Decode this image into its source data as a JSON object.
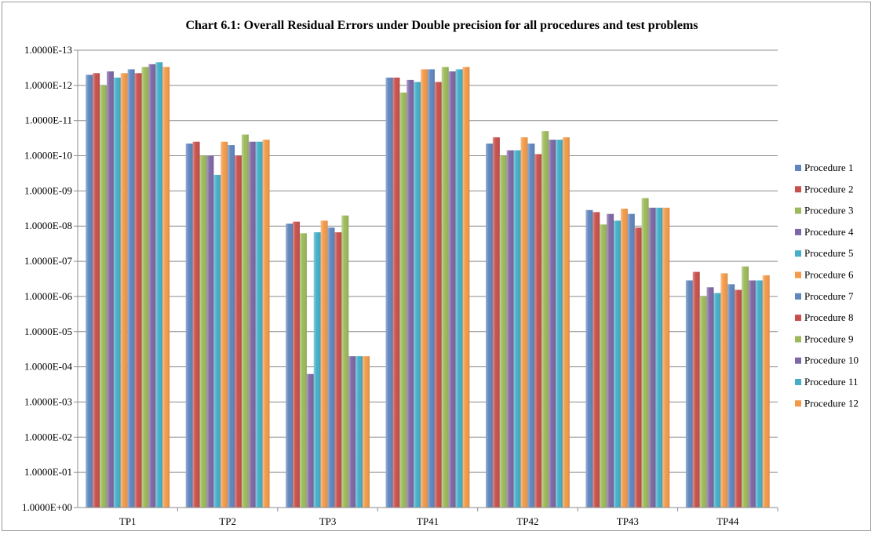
{
  "chart_data": {
    "type": "bar",
    "title": "Chart 6.1: Overall Residual Errors under Double precision for all procedures and test problems",
    "xlabel": "",
    "ylabel": "",
    "y_scale": "log",
    "y_axis_direction": "reversed (1.0000E+00 at bottom, 1.0000E-13 at top)",
    "ylim": [
      1.0,
      1e-13
    ],
    "y_tick_labels": [
      "1.0000E-13",
      "1.0000E-12",
      "1.0000E-11",
      "1.0000E-10",
      "1.0000E-09",
      "1.0000E-08",
      "1.0000E-07",
      "1.0000E-06",
      "1.0000E-05",
      "1.0000E-04",
      "1.0000E-03",
      "1.0000E-02",
      "1.0000E-01",
      "1.0000E+00"
    ],
    "categories": [
      "TP1",
      "TP2",
      "TP3",
      "TP41",
      "TP42",
      "TP43",
      "TP44"
    ],
    "grid": true,
    "legend_position": "right",
    "series": [
      {
        "name": "Procedure 1",
        "color": "#5f86bd",
        "values": [
          5e-13,
          4.5e-11,
          8.5e-09,
          6e-13,
          4.5e-11,
          3.5e-09,
          3.5e-07
        ]
      },
      {
        "name": "Procedure 2",
        "color": "#c8504c",
        "values": [
          4.5e-13,
          4e-11,
          7.5e-09,
          6e-13,
          3e-11,
          4e-09,
          2e-07
        ]
      },
      {
        "name": "Procedure 3",
        "color": "#9cba5a",
        "values": [
          1e-12,
          1e-10,
          1.6e-08,
          1.6e-12,
          1e-10,
          9e-09,
          1e-06
        ]
      },
      {
        "name": "Procedure 4",
        "color": "#7e67a4",
        "values": [
          4e-13,
          1e-10,
          0.00016,
          7e-13,
          7e-11,
          4.5e-09,
          5.5e-07
        ]
      },
      {
        "name": "Procedure 5",
        "color": "#45aec8",
        "values": [
          6e-13,
          3.5e-10,
          1.5e-08,
          8e-13,
          7e-11,
          7e-09,
          8e-07
        ]
      },
      {
        "name": "Procedure 6",
        "color": "#f39a48",
        "values": [
          4.5e-13,
          4e-11,
          7e-09,
          3.5e-13,
          3e-11,
          3.2e-09,
          2.2e-07
        ]
      },
      {
        "name": "Procedure 7",
        "color": "#5f86bd",
        "values": [
          3.5e-13,
          5e-11,
          1.1e-08,
          3.5e-13,
          4.5e-11,
          4.5e-09,
          4.5e-07
        ]
      },
      {
        "name": "Procedure 8",
        "color": "#c8504c",
        "values": [
          4.5e-13,
          1e-10,
          1.5e-08,
          8e-13,
          9e-11,
          1.1e-08,
          6.5e-07
        ]
      },
      {
        "name": "Procedure 9",
        "color": "#9cba5a",
        "values": [
          3e-13,
          2.5e-11,
          5e-09,
          3e-13,
          2e-11,
          1.6e-09,
          1.4e-07
        ]
      },
      {
        "name": "Procedure 10",
        "color": "#7e67a4",
        "values": [
          2.5e-13,
          4e-11,
          5e-05,
          4e-13,
          3.5e-11,
          3e-09,
          3.5e-07
        ]
      },
      {
        "name": "Procedure 11",
        "color": "#45aec8",
        "values": [
          2.2e-13,
          4e-11,
          5e-05,
          3.5e-13,
          3.5e-11,
          3e-09,
          3.5e-07
        ]
      },
      {
        "name": "Procedure 12",
        "color": "#f39a48",
        "values": [
          3e-13,
          3.5e-11,
          5e-05,
          3e-13,
          3e-11,
          3e-09,
          2.5e-07
        ]
      }
    ]
  }
}
